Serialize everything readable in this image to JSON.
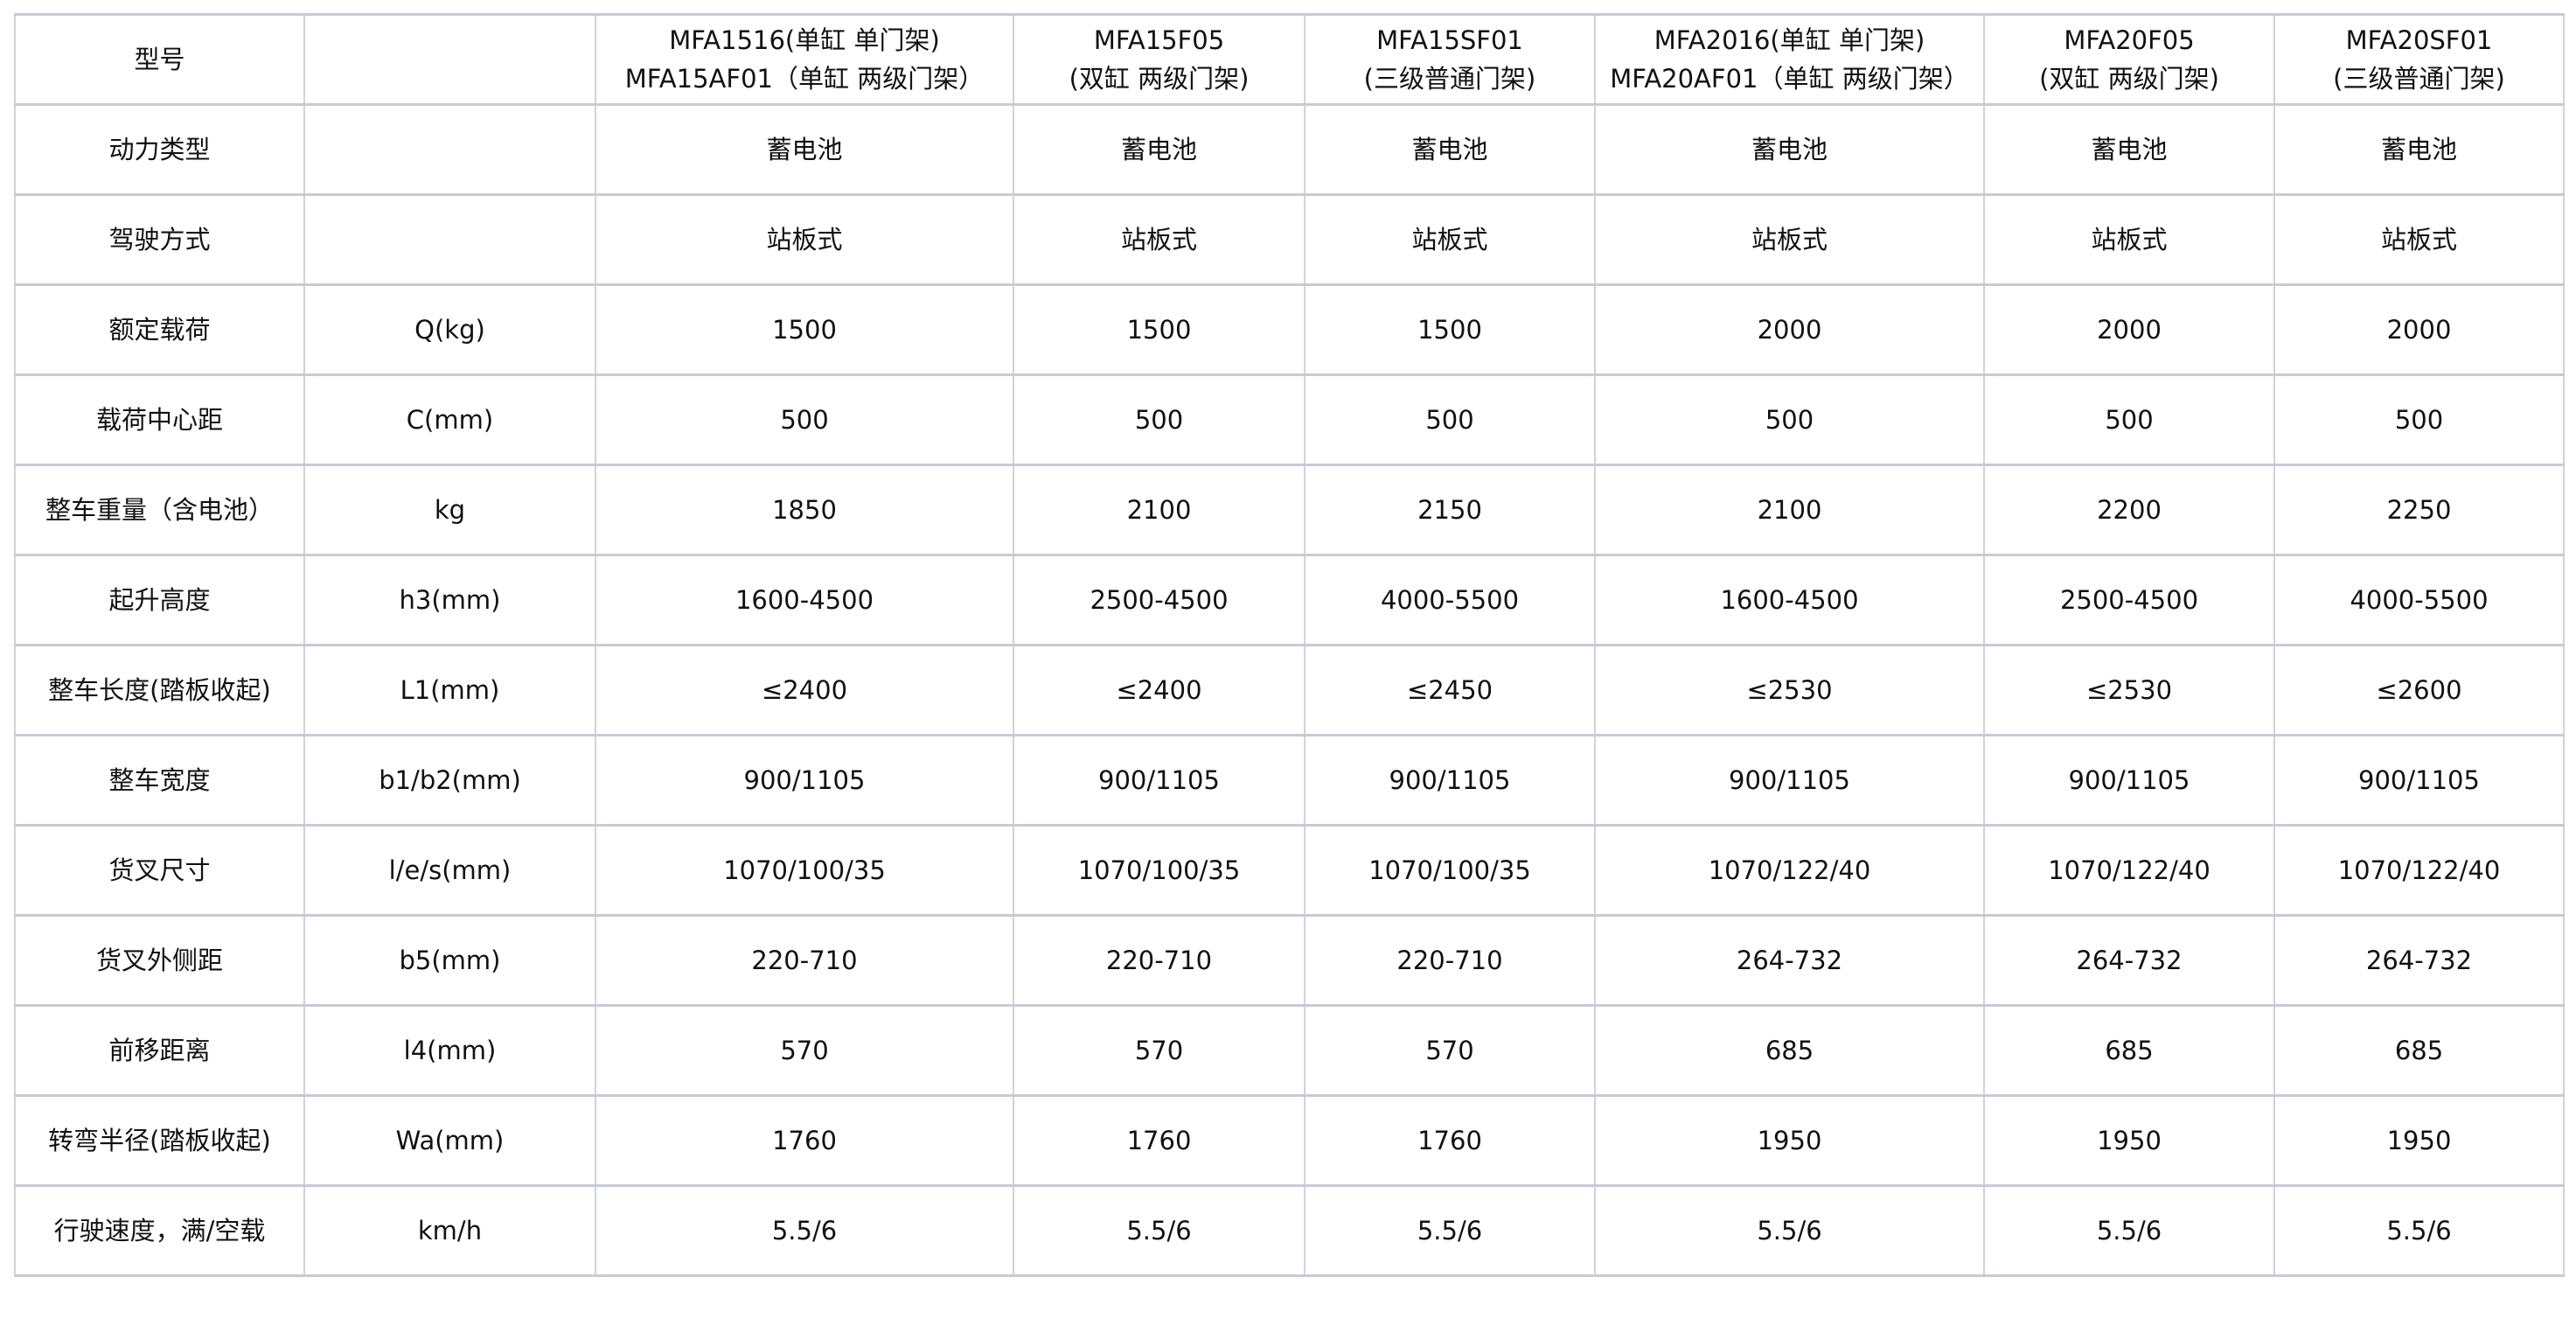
{
  "header": {
    "label": "型号",
    "unit": "",
    "models": [
      [
        "MFA1516(单缸 单门架)",
        "MFA15AF01（单缸 两级门架）"
      ],
      [
        "MFA15F05",
        "(双缸 两级门架)"
      ],
      [
        "MFA15SF01",
        "(三级普通门架)"
      ],
      [
        "MFA2016(单缸 单门架)",
        "MFA20AF01（单缸 两级门架）"
      ],
      [
        "MFA20F05",
        "(双缸 两级门架)"
      ],
      [
        "MFA20SF01",
        "(三级普通门架)"
      ]
    ]
  },
  "rows": [
    {
      "label": "动力类型",
      "unit": "",
      "values": [
        "蓄电池",
        "蓄电池",
        "蓄电池",
        "蓄电池",
        "蓄电池",
        "蓄电池"
      ]
    },
    {
      "label": "驾驶方式",
      "unit": "",
      "values": [
        "站板式",
        "站板式",
        "站板式",
        "站板式",
        "站板式",
        "站板式"
      ]
    },
    {
      "label": "额定载荷",
      "unit": "Q(kg)",
      "values": [
        "1500",
        "1500",
        "1500",
        "2000",
        "2000",
        "2000"
      ]
    },
    {
      "label": "载荷中心距",
      "unit": "C(mm)",
      "values": [
        "500",
        "500",
        "500",
        "500",
        "500",
        "500"
      ]
    },
    {
      "label": "整车重量（含电池）",
      "unit": "kg",
      "values": [
        "1850",
        "2100",
        "2150",
        "2100",
        "2200",
        "2250"
      ]
    },
    {
      "label": "起升高度",
      "unit": "h3(mm)",
      "values": [
        "1600-4500",
        "2500-4500",
        "4000-5500",
        "1600-4500",
        "2500-4500",
        "4000-5500"
      ]
    },
    {
      "label": "整车长度(踏板收起)",
      "unit": "L1(mm)",
      "values": [
        "≤2400",
        "≤2400",
        "≤2450",
        "≤2530",
        "≤2530",
        "≤2600"
      ]
    },
    {
      "label": "整车宽度",
      "unit": "b1/b2(mm)",
      "values": [
        "900/1105",
        "900/1105",
        "900/1105",
        "900/1105",
        "900/1105",
        "900/1105"
      ]
    },
    {
      "label": "货叉尺寸",
      "unit": "l/e/s(mm)",
      "values": [
        "1070/100/35",
        "1070/100/35",
        "1070/100/35",
        "1070/122/40",
        "1070/122/40",
        "1070/122/40"
      ]
    },
    {
      "label": "货叉外侧距",
      "unit": "b5(mm)",
      "values": [
        "220-710",
        "220-710",
        "220-710",
        "264-732",
        "264-732",
        "264-732"
      ]
    },
    {
      "label": "前移距离",
      "unit": "l4(mm)",
      "values": [
        "570",
        "570",
        "570",
        "685",
        "685",
        "685"
      ]
    },
    {
      "label": "转弯半径(踏板收起)",
      "unit": "Wa(mm)",
      "values": [
        "1760",
        "1760",
        "1760",
        "1950",
        "1950",
        "1950"
      ]
    },
    {
      "label": "行驶速度，满/空载",
      "unit": "km/h",
      "values": [
        "5.5/6",
        "5.5/6",
        "5.5/6",
        "5.5/6",
        "5.5/6",
        "5.5/6"
      ]
    }
  ]
}
